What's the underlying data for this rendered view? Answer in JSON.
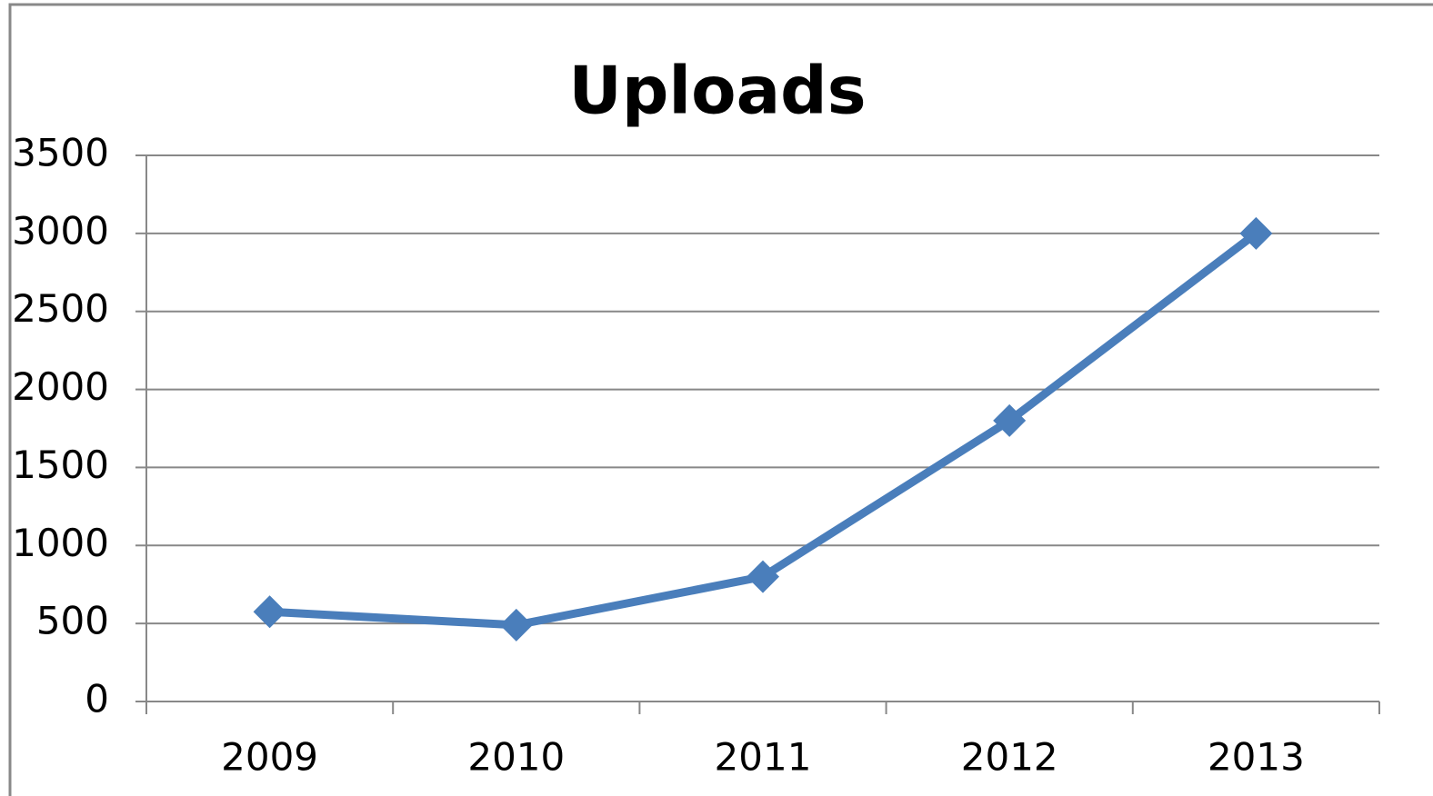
{
  "chart_data": {
    "type": "line",
    "title": "Uploads",
    "categories": [
      "2009",
      "2010",
      "2011",
      "2012",
      "2013"
    ],
    "series": [
      {
        "name": "Uploads",
        "color": "#4a7ebb",
        "values": [
          575,
          490,
          800,
          1800,
          3000
        ]
      }
    ],
    "ylim": [
      0,
      3500
    ],
    "yticks": [
      0,
      500,
      1000,
      1500,
      2000,
      2500,
      3000,
      3500
    ],
    "grid": true
  }
}
